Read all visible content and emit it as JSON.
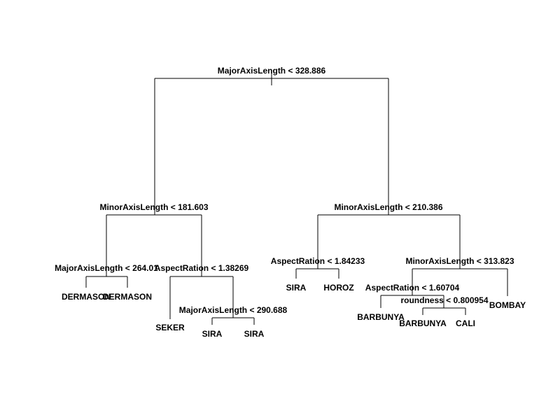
{
  "tree": {
    "root": {
      "split": "MajorAxisLength < 328.886",
      "left": {
        "split": "MinorAxisLength < 181.603",
        "left": {
          "split": "MajorAxisLength < 264.01",
          "left": {
            "leaf": "DERMASON"
          },
          "right": {
            "leaf": "DERMASON"
          }
        },
        "right": {
          "split": "AspectRation < 1.38269",
          "left": {
            "leaf": "SEKER"
          },
          "right": {
            "split": "MajorAxisLength < 290.688",
            "left": {
              "leaf": "SIRA"
            },
            "right": {
              "leaf": "SIRA"
            }
          }
        }
      },
      "right": {
        "split": "MinorAxisLength < 210.386",
        "left": {
          "split": "AspectRation < 1.84233",
          "left": {
            "leaf": "SIRA"
          },
          "right": {
            "leaf": "HOROZ"
          }
        },
        "right": {
          "split": "MinorAxisLength < 313.823",
          "left": {
            "split": "AspectRation < 1.60704",
            "left": {
              "leaf": "BARBUNYA"
            },
            "right": {
              "split": "roundness < 0.800954",
              "left": {
                "leaf": "BARBUNYA"
              },
              "right": {
                "leaf": "CALI"
              }
            }
          },
          "right": {
            "leaf": "BOMBAY"
          }
        }
      }
    }
  }
}
